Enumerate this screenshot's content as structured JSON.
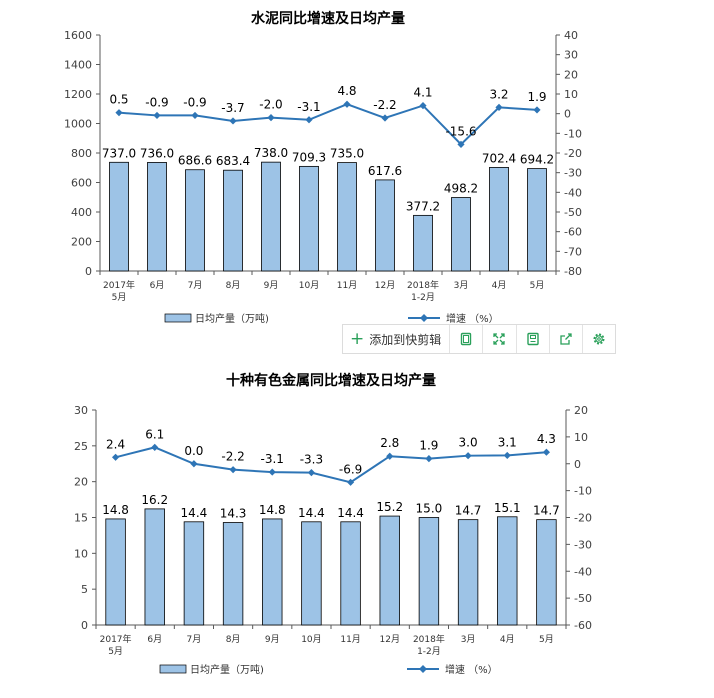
{
  "chart_data": [
    {
      "type": "bar+line",
      "title": "水泥同比增速及日均产量",
      "categories": [
        "2017年|5月",
        "6月",
        "7月",
        "8月",
        "9月",
        "10月",
        "11月",
        "12月",
        "2018年|1-2月",
        "3月",
        "4月",
        "5月"
      ],
      "series": [
        {
          "name": "日均产量（万吨)",
          "type": "bar",
          "axis": "left",
          "color": "#9dc3e6",
          "values": [
            737.0,
            736.0,
            686.6,
            683.4,
            738.0,
            709.3,
            735.0,
            617.6,
            377.2,
            498.2,
            702.4,
            694.2
          ],
          "labels": [
            "737.0",
            "736.0",
            "686.6",
            "683.4",
            "738.0",
            "709.3",
            "735.0",
            "617.6",
            "377.2",
            "498.2",
            "702.4",
            "694.2"
          ]
        },
        {
          "name": "增速 （%）",
          "type": "line",
          "axis": "right",
          "color": "#2e75b6",
          "values": [
            0.5,
            -0.9,
            -0.9,
            -3.7,
            -2.0,
            -3.1,
            4.8,
            -2.2,
            4.1,
            -15.6,
            3.2,
            1.9
          ],
          "labels": [
            "0.5",
            "-0.9",
            "-0.9",
            "-3.7",
            "-2.0",
            "-3.1",
            "4.8",
            "-2.2",
            "4.1",
            "-15.6",
            "3.2",
            "1.9"
          ]
        }
      ],
      "ylim_left": [
        0,
        1600
      ],
      "yticks_left": [
        0,
        200,
        400,
        600,
        800,
        1000,
        1200,
        1400,
        1600
      ],
      "ylim_right": [
        -80,
        40
      ],
      "yticks_right": [
        -80,
        -70,
        -60,
        -50,
        -40,
        -30,
        -20,
        -10,
        0,
        10,
        20,
        30,
        40
      ],
      "grid": false,
      "legend_position": "bottom"
    },
    {
      "type": "bar+line",
      "title": "十种有色金属同比增速及日均产量",
      "categories": [
        "2017年|5月",
        "6月",
        "7月",
        "8月",
        "9月",
        "10月",
        "11月",
        "12月",
        "2018年|1-2月",
        "3月",
        "4月",
        "5月"
      ],
      "series": [
        {
          "name": "日均产量（万吨)",
          "type": "bar",
          "axis": "left",
          "color": "#9dc3e6",
          "values": [
            14.8,
            16.2,
            14.4,
            14.3,
            14.8,
            14.4,
            14.4,
            15.2,
            15.0,
            14.7,
            15.1,
            14.7
          ],
          "labels": [
            "14.8",
            "16.2",
            "14.4",
            "14.3",
            "14.8",
            "14.4",
            "14.4",
            "15.2",
            "15.0",
            "14.7",
            "15.1",
            "14.7"
          ]
        },
        {
          "name": "增速 （%）",
          "type": "line",
          "axis": "right",
          "color": "#2e75b6",
          "values": [
            2.4,
            6.1,
            0.0,
            -2.2,
            -3.1,
            -3.3,
            -6.9,
            2.8,
            1.9,
            3.0,
            3.1,
            4.3
          ],
          "labels": [
            "2.4",
            "6.1",
            "0.0",
            "-2.2",
            "-3.1",
            "-3.3",
            "-6.9",
            "2.8",
            "1.9",
            "3.0",
            "3.1",
            "4.3"
          ]
        }
      ],
      "ylim_left": [
        0,
        30
      ],
      "yticks_left": [
        0,
        5,
        10,
        15,
        20,
        25,
        30
      ],
      "ylim_right": [
        -60,
        20
      ],
      "yticks_right": [
        -60,
        -50,
        -40,
        -30,
        -20,
        -10,
        0,
        10,
        20
      ],
      "grid": false,
      "legend_position": "bottom"
    }
  ],
  "toolbar": {
    "clip_label": "添加到快剪辑",
    "plus_icon": "plus-icon",
    "buttons": [
      "copy-icon",
      "expand-icon",
      "save-icon",
      "share-icon",
      "settings-icon"
    ],
    "accent": "#2aa05a"
  }
}
